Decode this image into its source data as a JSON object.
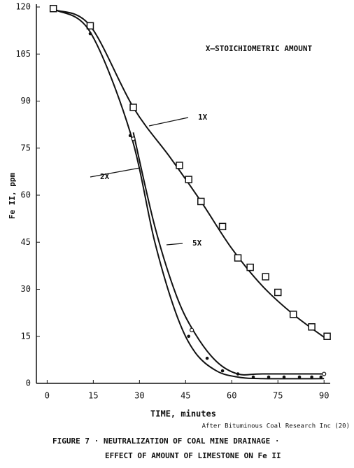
{
  "chart_data": {
    "type": "line",
    "annotation": "X–STOICHIOMETRIC AMOUNT",
    "xlabel": "TIME, minutes",
    "ylabel": "Fe II, ppm",
    "source": "After Bituminous Coal Research Inc (20)",
    "title": "FIGURE 7 · NEUTRALIZATION OF COAL MINE DRAINAGE ·",
    "subtitle": "EFFECT OF AMOUNT OF LIMESTONE ON Fe II",
    "xlim": [
      -3.5,
      92
    ],
    "ylim": [
      0,
      120
    ],
    "xticks": [
      0,
      15,
      30,
      45,
      60,
      75,
      90
    ],
    "yticks": [
      0,
      15,
      30,
      45,
      60,
      75,
      90,
      105,
      120
    ],
    "series": [
      {
        "name": "1X",
        "color": "#111111",
        "marker": "square",
        "x": [
          2,
          14,
          28,
          43,
          46,
          50,
          57,
          62,
          66,
          71,
          75,
          80,
          86,
          91
        ],
        "values": [
          119.5,
          114,
          88,
          69.5,
          65,
          58,
          50,
          40,
          37,
          34,
          29,
          22,
          18,
          15
        ],
        "curve_x": [
          3,
          14,
          28,
          40,
          50,
          60,
          70,
          80,
          91
        ],
        "curve": [
          119,
          114,
          88,
          72,
          58,
          43,
          31,
          22,
          14
        ]
      },
      {
        "name": "2X",
        "color": "#111111",
        "marker": "dot",
        "x": [
          14,
          27,
          46,
          52,
          57,
          62,
          67,
          72,
          77,
          82,
          86,
          89
        ],
        "values": [
          111.5,
          79,
          15,
          8,
          4,
          3,
          2,
          2,
          2,
          2,
          2,
          2
        ],
        "curve_x": [
          3,
          14,
          27,
          35,
          42,
          48,
          55,
          62,
          70,
          90
        ],
        "curve": [
          119,
          112,
          80,
          45,
          22,
          10,
          4,
          2,
          1.5,
          1.5
        ]
      },
      {
        "name": "5X",
        "color": "#111111",
        "marker": "circle",
        "x": [
          28,
          47,
          90
        ],
        "values": [
          78,
          17,
          3
        ],
        "curve_x": [
          28,
          35,
          42,
          48,
          55,
          62,
          70,
          90
        ],
        "curve": [
          80,
          50,
          28,
          16,
          7,
          3,
          3,
          3
        ]
      }
    ]
  }
}
